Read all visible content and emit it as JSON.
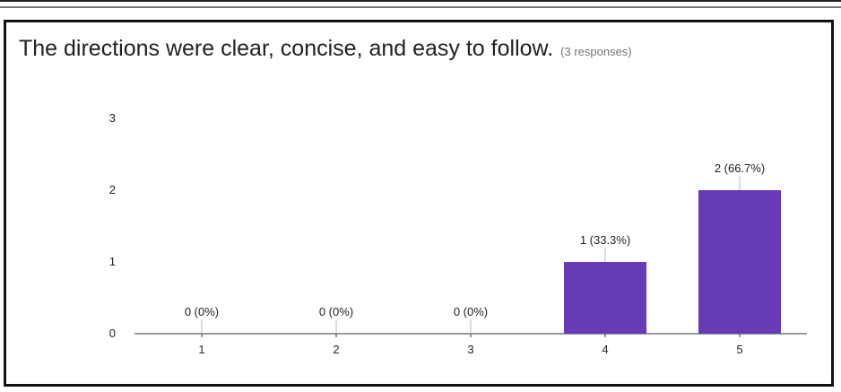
{
  "chart_data": {
    "type": "bar",
    "title": "The directions were clear, concise, and easy to follow.",
    "subtitle": "(3 responses)",
    "categories": [
      "1",
      "2",
      "3",
      "4",
      "5"
    ],
    "values": [
      0,
      0,
      0,
      1,
      2
    ],
    "data_labels": [
      "0 (0%)",
      "0 (0%)",
      "0 (0%)",
      "1 (33.3%)",
      "2 (66.7%)"
    ],
    "yticks": [
      "0",
      "1",
      "2",
      "3"
    ],
    "ylim": [
      0,
      3
    ],
    "grid": false,
    "legend": "none",
    "bar_color": "#673ab7"
  }
}
